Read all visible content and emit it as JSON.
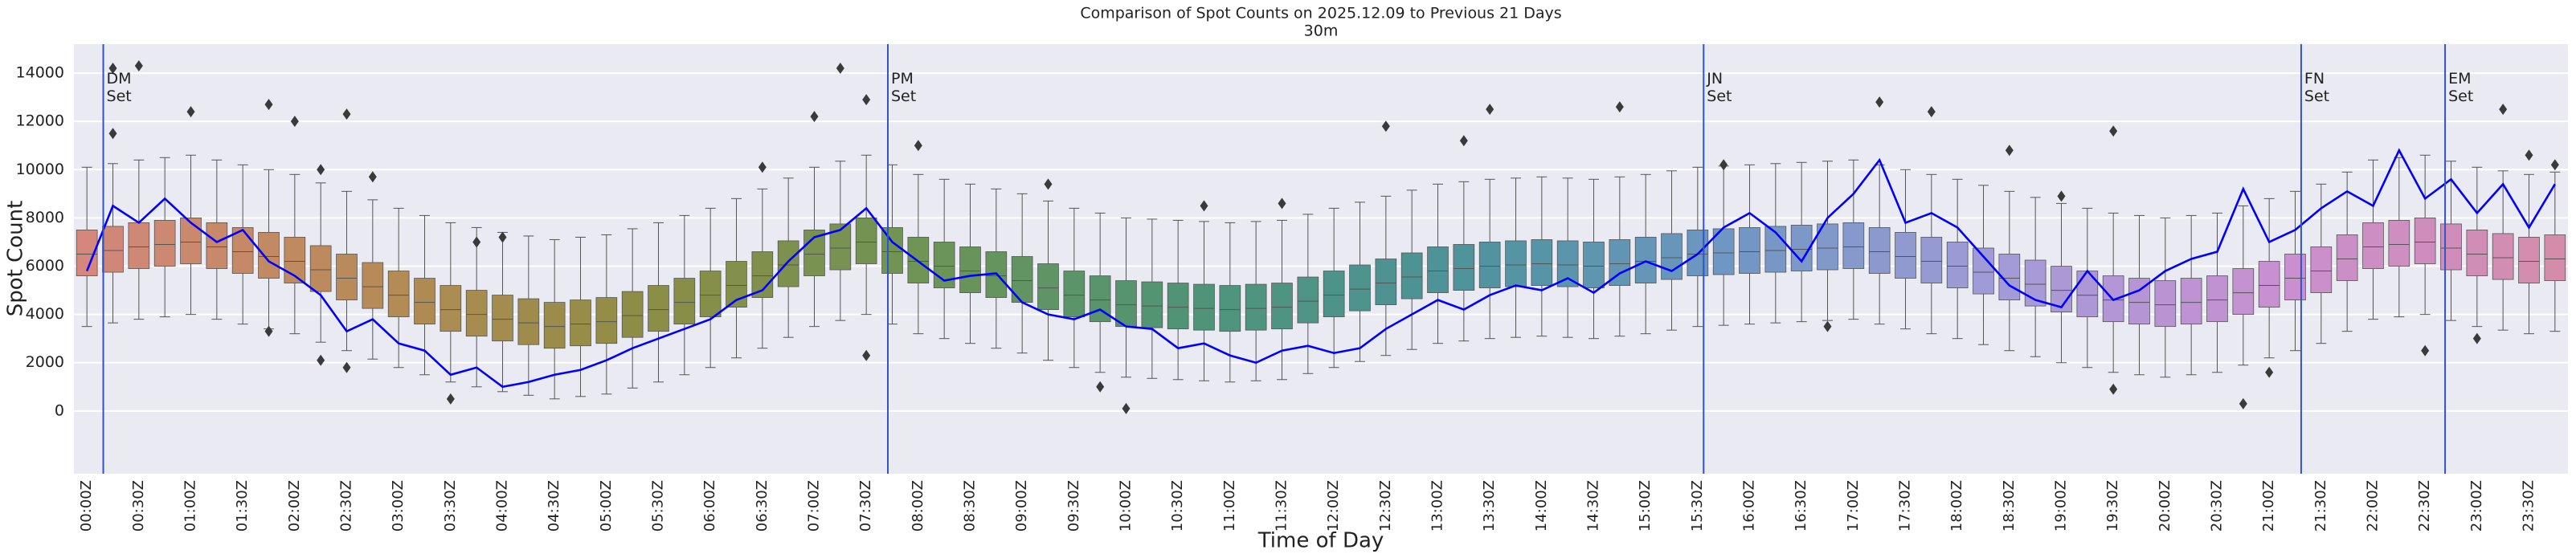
{
  "chart_data": {
    "type": "boxplot",
    "title": "Comparison of Spot Counts on 2025.12.09 to Previous 21 Days",
    "subtitle": "30m",
    "x_label": "Time of Day",
    "y_label": "Spot Count",
    "ylim": [
      -2600,
      15200
    ],
    "yticks": [
      0,
      2000,
      4000,
      6000,
      8000,
      10000,
      12000,
      14000
    ],
    "grid": true,
    "categories": [
      "00:00Z",
      null,
      "00:30Z",
      null,
      "01:00Z",
      null,
      "01:30Z",
      null,
      "02:00Z",
      null,
      "02:30Z",
      null,
      "03:00Z",
      null,
      "03:30Z",
      null,
      "04:00Z",
      null,
      "04:30Z",
      null,
      "05:00Z",
      null,
      "05:30Z",
      null,
      "06:00Z",
      null,
      "06:30Z",
      null,
      "07:00Z",
      null,
      "07:30Z",
      null,
      "08:00Z",
      null,
      "08:30Z",
      null,
      "09:00Z",
      null,
      "09:30Z",
      null,
      "10:00Z",
      null,
      "10:30Z",
      null,
      "11:00Z",
      null,
      "11:30Z",
      null,
      "12:00Z",
      null,
      "12:30Z",
      null,
      "13:00Z",
      null,
      "13:30Z",
      null,
      "14:00Z",
      null,
      "14:30Z",
      null,
      "15:00Z",
      null,
      "15:30Z",
      null,
      "16:00Z",
      null,
      "16:30Z",
      null,
      "17:00Z",
      null,
      "17:30Z",
      null,
      "18:00Z",
      null,
      "18:30Z",
      null,
      "19:00Z",
      null,
      "19:30Z",
      null,
      "20:00Z",
      null,
      "20:30Z",
      null,
      "21:00Z",
      null,
      "21:30Z",
      null,
      "22:00Z",
      null,
      "22:30Z",
      null,
      "23:00Z",
      null,
      "23:30Z",
      null
    ],
    "palette": [
      "#d4877a",
      "#b98b58",
      "#8e8d45",
      "#6f9455",
      "#4f9476",
      "#4e939a",
      "#6f97c4",
      "#a39bd8",
      "#c98fd0",
      "#d58cab"
    ],
    "box_edge": "#555555",
    "boxes": {
      "median": [
        6500,
        6650,
        6800,
        6900,
        7000,
        6800,
        6600,
        6400,
        6200,
        5850,
        5500,
        5150,
        4800,
        4500,
        4200,
        4000,
        3800,
        3650,
        3500,
        3600,
        3700,
        3950,
        4200,
        4500,
        4800,
        5200,
        5600,
        6050,
        6500,
        6750,
        7000,
        6600,
        6200,
        6000,
        5800,
        5600,
        5400,
        5100,
        4800,
        4600,
        4400,
        4350,
        4300,
        4250,
        4200,
        4250,
        4300,
        4550,
        4800,
        5050,
        5300,
        5550,
        5800,
        5900,
        6000,
        6050,
        6100,
        6050,
        6000,
        6100,
        6200,
        6350,
        6500,
        6550,
        6600,
        6650,
        6700,
        6750,
        6800,
        6600,
        6400,
        6200,
        6000,
        5750,
        5500,
        5250,
        5000,
        4800,
        4600,
        4500,
        4400,
        4500,
        4600,
        4900,
        5200,
        5500,
        5800,
        6300,
        6800,
        6900,
        7000,
        6750,
        6500,
        6350,
        6200,
        6300
      ],
      "q1": [
        5600,
        5750,
        5900,
        6000,
        6100,
        5900,
        5700,
        5500,
        5300,
        4950,
        4600,
        4250,
        3900,
        3600,
        3300,
        3100,
        2900,
        2750,
        2600,
        2700,
        2800,
        3050,
        3300,
        3600,
        3900,
        4300,
        4700,
        5150,
        5600,
        5850,
        6100,
        5700,
        5300,
        5100,
        4900,
        4700,
        4500,
        4200,
        3900,
        3700,
        3500,
        3450,
        3400,
        3350,
        3300,
        3350,
        3400,
        3650,
        3900,
        4150,
        4400,
        4650,
        4900,
        5000,
        5100,
        5150,
        5200,
        5150,
        5100,
        5200,
        5300,
        5450,
        5600,
        5650,
        5700,
        5750,
        5800,
        5850,
        5900,
        5700,
        5500,
        5300,
        5100,
        4850,
        4600,
        4350,
        4100,
        3900,
        3700,
        3600,
        3500,
        3600,
        3700,
        4000,
        4300,
        4600,
        4900,
        5400,
        5900,
        6000,
        6100,
        5850,
        5600,
        5450,
        5300,
        5400
      ],
      "q3": [
        7500,
        7650,
        7800,
        7900,
        8000,
        7800,
        7600,
        7400,
        7200,
        6850,
        6500,
        6150,
        5800,
        5500,
        5200,
        5000,
        4800,
        4650,
        4500,
        4600,
        4700,
        4950,
        5200,
        5500,
        5800,
        6200,
        6600,
        7050,
        7500,
        7750,
        8000,
        7600,
        7200,
        7000,
        6800,
        6600,
        6400,
        6100,
        5800,
        5600,
        5400,
        5350,
        5300,
        5250,
        5200,
        5250,
        5300,
        5550,
        5800,
        6050,
        6300,
        6550,
        6800,
        6900,
        7000,
        7050,
        7100,
        7050,
        7000,
        7100,
        7200,
        7350,
        7500,
        7550,
        7600,
        7650,
        7700,
        7750,
        7800,
        7600,
        7400,
        7200,
        7000,
        6750,
        6500,
        6250,
        6000,
        5800,
        5600,
        5500,
        5400,
        5500,
        5600,
        5900,
        6200,
        6500,
        6800,
        7300,
        7800,
        7900,
        8000,
        7750,
        7500,
        7350,
        7200,
        7300
      ],
      "whislo": [
        3500,
        3650,
        3800,
        3900,
        4000,
        3800,
        3600,
        3400,
        3200,
        2850,
        2500,
        2150,
        1800,
        1500,
        1200,
        1000,
        800,
        650,
        500,
        600,
        700,
        950,
        1200,
        1500,
        1800,
        2200,
        2600,
        3050,
        3500,
        3750,
        4000,
        3600,
        3200,
        3000,
        2800,
        2600,
        2400,
        2100,
        1800,
        1600,
        1400,
        1350,
        1300,
        1250,
        1200,
        1250,
        1300,
        1550,
        1800,
        2050,
        2300,
        2550,
        2800,
        2900,
        3000,
        3050,
        3100,
        3050,
        3000,
        3100,
        3200,
        3350,
        3500,
        3550,
        3600,
        3650,
        3700,
        3750,
        3800,
        3600,
        3400,
        3200,
        3000,
        2750,
        2500,
        2250,
        2000,
        1800,
        1600,
        1500,
        1400,
        1500,
        1600,
        1900,
        2200,
        2500,
        2800,
        3300,
        3800,
        3900,
        4000,
        3750,
        3500,
        3350,
        3200,
        3300
      ],
      "whishi": [
        10100,
        10250,
        10400,
        10500,
        10600,
        10400,
        10200,
        10000,
        9800,
        9450,
        9100,
        8750,
        8400,
        8100,
        7800,
        7600,
        7400,
        7250,
        7100,
        7200,
        7300,
        7550,
        7800,
        8100,
        8400,
        8800,
        9200,
        9650,
        10100,
        10350,
        10600,
        10200,
        9800,
        9600,
        9400,
        9200,
        9000,
        8700,
        8400,
        8200,
        8000,
        7950,
        7900,
        7850,
        7800,
        7850,
        7900,
        8150,
        8400,
        8650,
        8900,
        9150,
        9400,
        9500,
        9600,
        9650,
        9700,
        9650,
        9600,
        9700,
        9800,
        9950,
        10100,
        10150,
        10200,
        10250,
        10300,
        10350,
        10400,
        10200,
        10000,
        9800,
        9600,
        9350,
        9100,
        8850,
        8600,
        8400,
        8200,
        8100,
        8000,
        8100,
        8200,
        8500,
        8800,
        9100,
        9400,
        9900,
        10400,
        10500,
        10600,
        10350,
        10100,
        9950,
        9800,
        9900
      ]
    },
    "outliers": {
      "color": "#3a3a3a",
      "x": [
        1,
        2,
        1,
        4,
        7,
        8,
        9,
        10,
        11,
        7,
        9,
        10,
        14,
        15,
        16,
        26,
        28,
        30,
        29,
        30,
        32,
        37,
        39,
        40,
        43,
        46,
        50,
        54,
        53,
        59,
        63,
        67,
        69,
        71,
        74,
        76,
        78,
        78,
        83,
        84,
        90,
        93,
        92,
        94,
        95
      ],
      "values": [
        14200,
        14300,
        11500,
        12400,
        12700,
        12000,
        10000,
        12300,
        9700,
        3300,
        2100,
        1800,
        500,
        7000,
        7200,
        10100,
        12200,
        12900,
        14200,
        2300,
        11000,
        9400,
        1000,
        100,
        8500,
        8600,
        11800,
        12500,
        11200,
        12600,
        10200,
        3500,
        12800,
        12400,
        10800,
        8900,
        11600,
        900,
        300,
        1600,
        2500,
        12500,
        3000,
        10600,
        10200
      ]
    },
    "line": {
      "color": "#0000ff",
      "values": [
        5800,
        8500,
        7800,
        8800,
        7800,
        7000,
        7500,
        6200,
        5600,
        4800,
        3300,
        3800,
        2800,
        2500,
        1500,
        1800,
        1000,
        1200,
        1500,
        1700,
        2100,
        2600,
        3000,
        3400,
        3800,
        4600,
        5000,
        6200,
        7200,
        7500,
        8400,
        7000,
        6200,
        5400,
        5600,
        5700,
        4500,
        4000,
        3800,
        4200,
        3500,
        3400,
        2600,
        2800,
        2300,
        2000,
        2500,
        2700,
        2400,
        2600,
        3400,
        4000,
        4600,
        4200,
        4800,
        5200,
        5000,
        5500,
        4900,
        5700,
        6200,
        5800,
        6500,
        7600,
        8200,
        7400,
        6200,
        8000,
        9000,
        10400,
        7800,
        8200,
        7600,
        6400,
        5200,
        4600,
        4300,
        5800,
        4600,
        5000,
        5800,
        6300,
        6600,
        9200,
        7000,
        7500,
        8400,
        9100,
        8500,
        10800,
        8800,
        9600,
        8200,
        9400,
        7600,
        9400
      ]
    },
    "annotations": [
      {
        "x": 1.13,
        "text": "DM\nSet"
      },
      {
        "x": 31.33,
        "text": "PM\nSet"
      },
      {
        "x": 62.73,
        "text": "JN\nSet"
      },
      {
        "x": 85.73,
        "text": "FN\nSet"
      },
      {
        "x": 91.27,
        "text": "EM\nSet"
      }
    ],
    "annotation_color": "#2f55c8"
  }
}
